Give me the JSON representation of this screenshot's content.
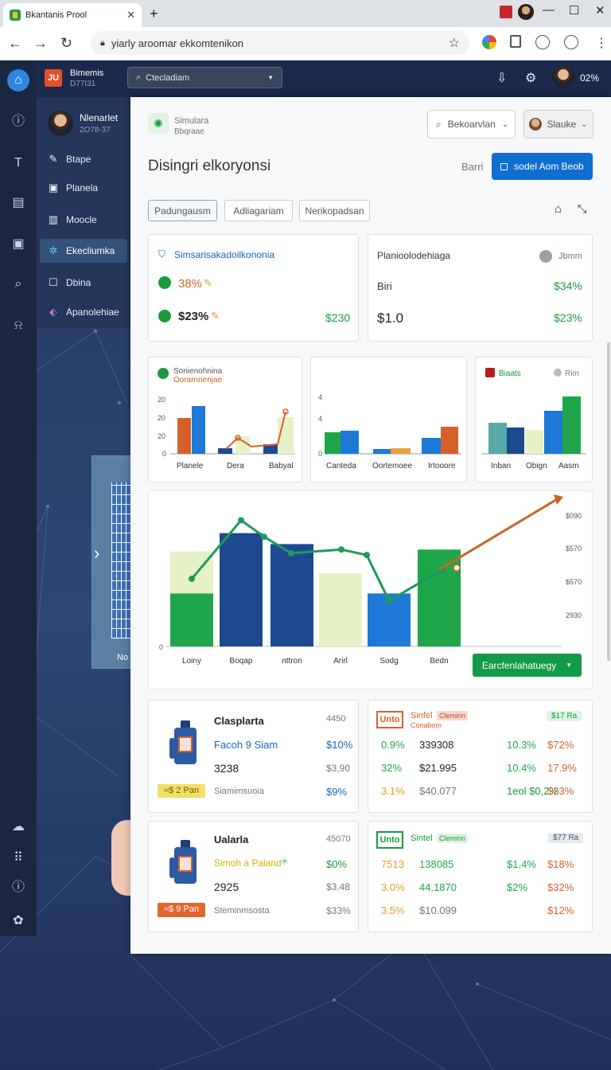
{
  "browser": {
    "tab_title": "Bkantanis Prool",
    "address": "yiarly aroomar ekkomtenikon",
    "tab_close": "✕",
    "new_tab": "+"
  },
  "app": {
    "logo": "JU",
    "name": "Bimemis",
    "sub": "D77I31",
    "search_placeholder": "Ctecladiam",
    "header_pct": "02%"
  },
  "sidebar": {
    "user_name": "Nlenarlet",
    "user_sub": "2O78-37",
    "items": [
      {
        "label": "Btape"
      },
      {
        "label": "Planela"
      },
      {
        "label": "Moocle"
      },
      {
        "label": "Ekecliumka"
      },
      {
        "label": "Dbina"
      },
      {
        "label": "Apanolehiae"
      }
    ],
    "panel_label": "No"
  },
  "main": {
    "brand": "Simulara",
    "brand_sub": "Bbqraae",
    "search_label": "Bekoarvlan",
    "user_label": "Slauke",
    "title": "Disingri elkoryonsi",
    "bari": "Barri",
    "primary_button": "sodel Aom Beob",
    "tabs": [
      "Padungausm",
      "Adliagariam",
      "Nerikopadsan"
    ]
  },
  "summary": [
    {
      "title": "Simsarisakadoilkononia",
      "rows": [
        {
          "label": "38%",
          "color": "#d6602a",
          "value": ""
        },
        {
          "label": "$23%",
          "color": "#222",
          "value": "$230"
        }
      ]
    },
    {
      "title": "Planioolodehiaga",
      "right": "Jbmm",
      "rows": [
        {
          "label": "Biri",
          "value": "$34%"
        },
        {
          "label": "$1.0",
          "value": "$23%"
        }
      ]
    }
  ],
  "colors": {
    "dark_blue": "#1d4a8f",
    "blue": "#1e78d7",
    "green": "#1fa64a",
    "orange": "#d6602a",
    "lime": "#e6f2c6",
    "teal": "#5aa9a6",
    "accent": "#1565c0"
  },
  "mini_charts": [
    {
      "title": "Sonienohnina",
      "subtitle": "Oorarnnenjae",
      "yticks": [
        "20",
        "20",
        "20",
        "0"
      ],
      "categories": [
        "Planele",
        "Dera",
        "Babyal"
      ]
    },
    {
      "title": "",
      "yticks": [
        "4",
        "4",
        "0"
      ],
      "categories": [
        "Canteda",
        "Oortemoee",
        "Irtooore"
      ]
    },
    {
      "title": "Biaats",
      "right": "Rim",
      "categories": [
        "Inban",
        "Obign",
        "Aasm"
      ]
    }
  ],
  "chart_data": {
    "type": "bar",
    "categories": [
      "Loiny",
      "Boqap",
      "nttron",
      "Arirl",
      "Sodg",
      "Bedn"
    ],
    "series": [
      {
        "color": "#1fa64a",
        "values": [
          290,
          0,
          0,
          0,
          0,
          530
        ]
      },
      {
        "color": "#1d4a8f",
        "values": [
          0,
          620,
          560,
          0,
          0,
          0
        ]
      },
      {
        "color": "#1e78d7",
        "values": [
          0,
          0,
          0,
          0,
          290,
          0
        ]
      }
    ],
    "bg_values": [
      520,
      0,
      0,
      400,
      0,
      0
    ],
    "line": [
      {
        "x": "Loiny",
        "y": 370
      },
      {
        "x": "Boqap",
        "y": 690
      },
      {
        "x": "Boqap2",
        "y": 600
      },
      {
        "x": "nttron",
        "y": 510
      },
      {
        "x": "Arirl",
        "y": 530
      },
      {
        "x": "Arirl2",
        "y": 500
      },
      {
        "x": "Sodg",
        "y": 250
      },
      {
        "x": "Bedn",
        "y": 420
      }
    ],
    "trend_end": 810,
    "right_ticks": [
      "$090",
      "$570",
      "$570",
      "2930"
    ],
    "zero_label": "0",
    "filter_button": "Earcfenlahatuegy"
  },
  "products": [
    {
      "name": "Clasplarta",
      "code": "4450",
      "line2": "Facoh 9 Siam",
      "line2_val": "$10%",
      "num": "3238",
      "num_val": "$3,90",
      "badge": "≈$ 2 Pan",
      "note": "Siamimsuoia",
      "note_val": "$9%",
      "badge_color": "#f2df6a",
      "line2_color": "#1565c0",
      "note_color": "#1565c0"
    },
    {
      "name": "Ualarla",
      "code": "45070",
      "line2": "Simoh a Paland",
      "line2_val": "$0%",
      "num": "2925",
      "num_val": "$3.48",
      "badge": "≈$ 9 Pan",
      "note": "Steminmsosta",
      "note_val": "$33%",
      "badge_color": "#e0662e",
      "line2_color": "#cbb400",
      "note_color": "#777"
    }
  ],
  "stats": [
    {
      "logo": "Unto",
      "title": "Sinfel",
      "chip": "Cleminn",
      "sub": "Conabom",
      "tag": "$17 Ra",
      "rows": [
        [
          "0.9%",
          "339308",
          "10.3%",
          "$72%"
        ],
        [
          "32%",
          "$21.995",
          "10.4%",
          "17.9%"
        ],
        [
          "3.1%",
          "$40.077",
          "1eol $0,2%",
          "$23%"
        ]
      ]
    },
    {
      "logo": "Unto",
      "title": "Sintel",
      "chip": "Cleminn",
      "sub": "",
      "tag": "$77 Ra",
      "rows": [
        [
          "7513",
          "138085",
          "$1.4%",
          "$18%"
        ],
        [
          "3.0%",
          "44.1870",
          "$2%",
          "$32%"
        ],
        [
          "3.5%",
          "$10.099",
          "",
          "$12%"
        ]
      ]
    }
  ]
}
